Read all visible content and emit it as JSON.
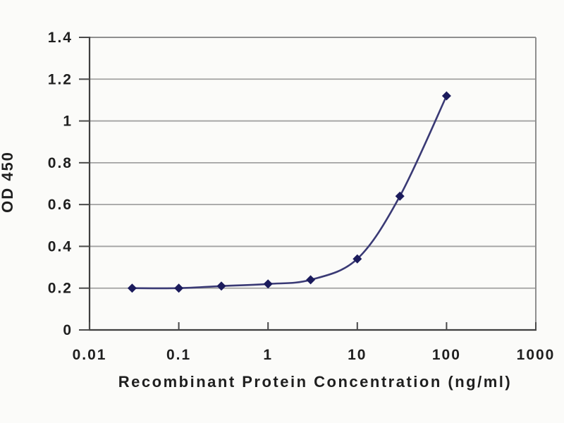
{
  "chart_data": {
    "type": "line",
    "title": "",
    "xlabel": "Recombinant Protein Concentration (ng/ml)",
    "ylabel": "OD 450",
    "x_scale": "log",
    "xlim": [
      0.01,
      1000
    ],
    "ylim": [
      0,
      1.4
    ],
    "x_ticks": [
      0.01,
      0.1,
      1,
      10,
      100,
      1000
    ],
    "x_tick_labels": [
      "0.01",
      "0.1",
      "1",
      "10",
      "100",
      "1000"
    ],
    "y_ticks": [
      0,
      0.2,
      0.4,
      0.6,
      0.8,
      1,
      1.2,
      1.4
    ],
    "y_tick_labels": [
      "0",
      "0.2",
      "0.4",
      "0.6",
      "0.8",
      "1",
      "1.2",
      "1.4"
    ],
    "grid": "horizontal",
    "legend": "none",
    "series": [
      {
        "name": "OD 450",
        "marker": "diamond",
        "smooth": true,
        "x": [
          0.03,
          0.1,
          0.3,
          1,
          3,
          10,
          30,
          100
        ],
        "y": [
          0.2,
          0.2,
          0.21,
          0.22,
          0.24,
          0.34,
          0.64,
          1.12
        ]
      }
    ],
    "colors": {
      "line": "#3a3a75",
      "marker": "#1b1b5c",
      "grid": "#a2a2a2",
      "frame": "#8f8f8f",
      "axis": "#3f3f3f",
      "tick": "#4a4a4a",
      "text": "#1f1f1f",
      "background": "#fbfbf9"
    }
  }
}
